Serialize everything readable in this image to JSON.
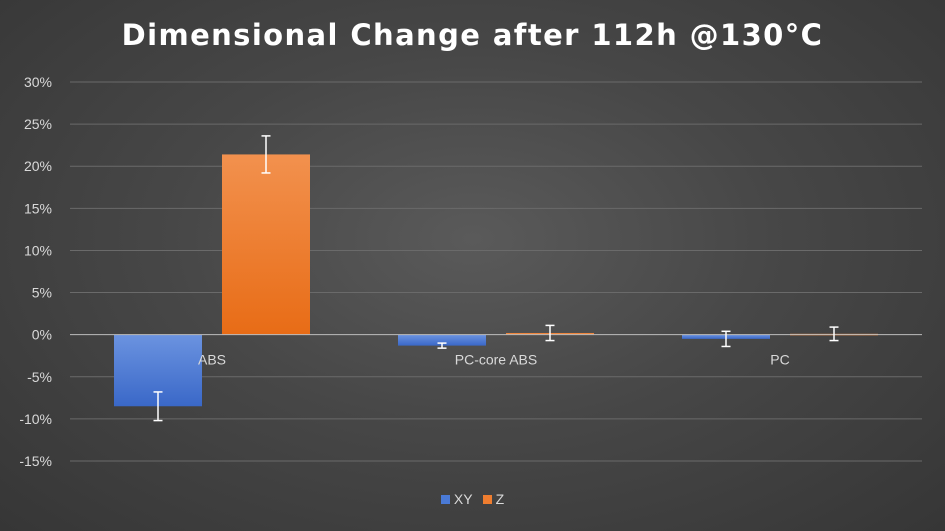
{
  "chart_data": {
    "type": "bar",
    "title": "Dimensional Change after 112h @130°C",
    "categories": [
      "ABS",
      "PC-core ABS",
      "PC"
    ],
    "series": [
      {
        "name": "XY",
        "color": "#4a7ad6",
        "values": [
          -8.5,
          -1.3,
          -0.5
        ],
        "errors": [
          1.7,
          0.3,
          0.9
        ]
      },
      {
        "name": "Z",
        "color": "#ef7d2f",
        "values": [
          21.4,
          0.2,
          0.1
        ],
        "errors": [
          2.2,
          0.9,
          0.8
        ]
      }
    ],
    "ylim": [
      -15,
      30
    ],
    "yticks": [
      30,
      25,
      20,
      15,
      10,
      5,
      0,
      -5,
      -10,
      -15
    ],
    "ytick_format": "percent",
    "grid": true,
    "legend_position": "bottom",
    "xlabel": "",
    "ylabel": ""
  }
}
